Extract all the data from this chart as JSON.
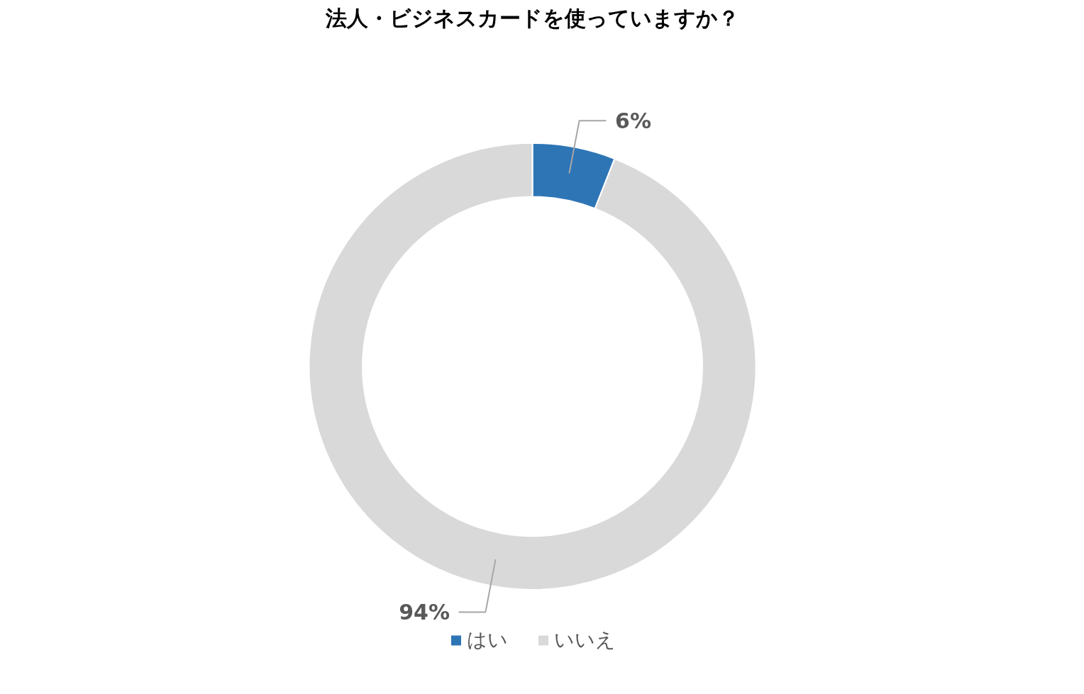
{
  "chart_data": {
    "type": "donut",
    "title": "法人・ビジネスカードを使っていますか？",
    "categories": [
      "はい",
      "いいえ"
    ],
    "values": [
      6,
      94
    ],
    "colors": [
      "#2e75b6",
      "#d9d9d9"
    ],
    "value_labels": [
      "6%",
      "94%"
    ],
    "legend": "bottom"
  }
}
